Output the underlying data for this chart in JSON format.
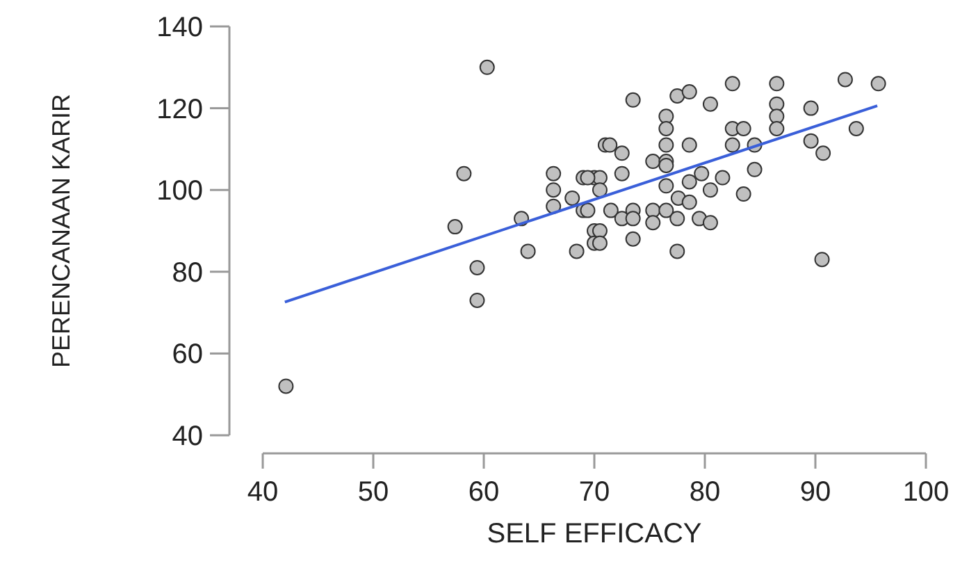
{
  "chart_data": {
    "type": "scatter",
    "xlabel": "SELF EFFICACY",
    "ylabel": "PERENCANAAN KARIR",
    "xlim": [
      40,
      100
    ],
    "xticks": [
      40,
      50,
      60,
      70,
      80,
      90,
      100
    ],
    "ylim": [
      40,
      140
    ],
    "yticks": [
      40,
      60,
      80,
      100,
      120,
      140
    ],
    "grid": false,
    "series": [
      {
        "color": "#c0c0c0",
        "marker": "circle",
        "x": [
          60.3,
          58.2,
          57.4,
          59.4,
          59.4,
          42.1,
          63.4,
          64,
          66.3,
          66.3,
          66.3,
          68.4,
          69,
          70,
          68,
          69,
          70,
          70,
          71,
          73.5,
          77.5,
          78.6,
          82.5,
          86.5,
          92.7,
          95.7,
          80.5,
          86.5,
          89.6,
          76.5,
          76.5,
          86.5,
          86.5,
          82.5,
          83.5,
          93.7,
          89.6,
          90.7,
          71.4,
          72.5,
          76.5,
          78.6,
          82.5,
          84.5,
          84.5,
          75.3,
          76.5,
          76.5,
          72.5,
          70.5,
          69.4,
          81.6,
          76.5,
          78.6,
          79.7,
          80.5,
          83.5,
          77.6,
          78.6,
          70.5,
          69.4,
          71.5,
          72.5,
          73.5,
          75.3,
          76.5,
          73.5,
          75.3,
          77.5,
          79.5,
          80.5,
          70.5,
          70.5,
          73.5,
          77.5,
          90.6
        ],
        "values": [
          130,
          104,
          91,
          81,
          73,
          52,
          93,
          85,
          104,
          100,
          96,
          85,
          103,
          103,
          98,
          95,
          90,
          87,
          111,
          122,
          123,
          124,
          126,
          126,
          127,
          126,
          121,
          121,
          120,
          118,
          115,
          118,
          115,
          115,
          115,
          115,
          112,
          109,
          111,
          109,
          111,
          111,
          111,
          111,
          105,
          107,
          107,
          106,
          104,
          103,
          103,
          103,
          101,
          102,
          104,
          100,
          99,
          98,
          97,
          100,
          95,
          95,
          93,
          95,
          95,
          95,
          93,
          92,
          93,
          93,
          92,
          90,
          87,
          88,
          85,
          83
        ]
      },
      {
        "type": "line",
        "color": "#3a5fd9",
        "x": [
          42,
          95.6
        ],
        "values": [
          72.6,
          120.6
        ]
      }
    ]
  }
}
